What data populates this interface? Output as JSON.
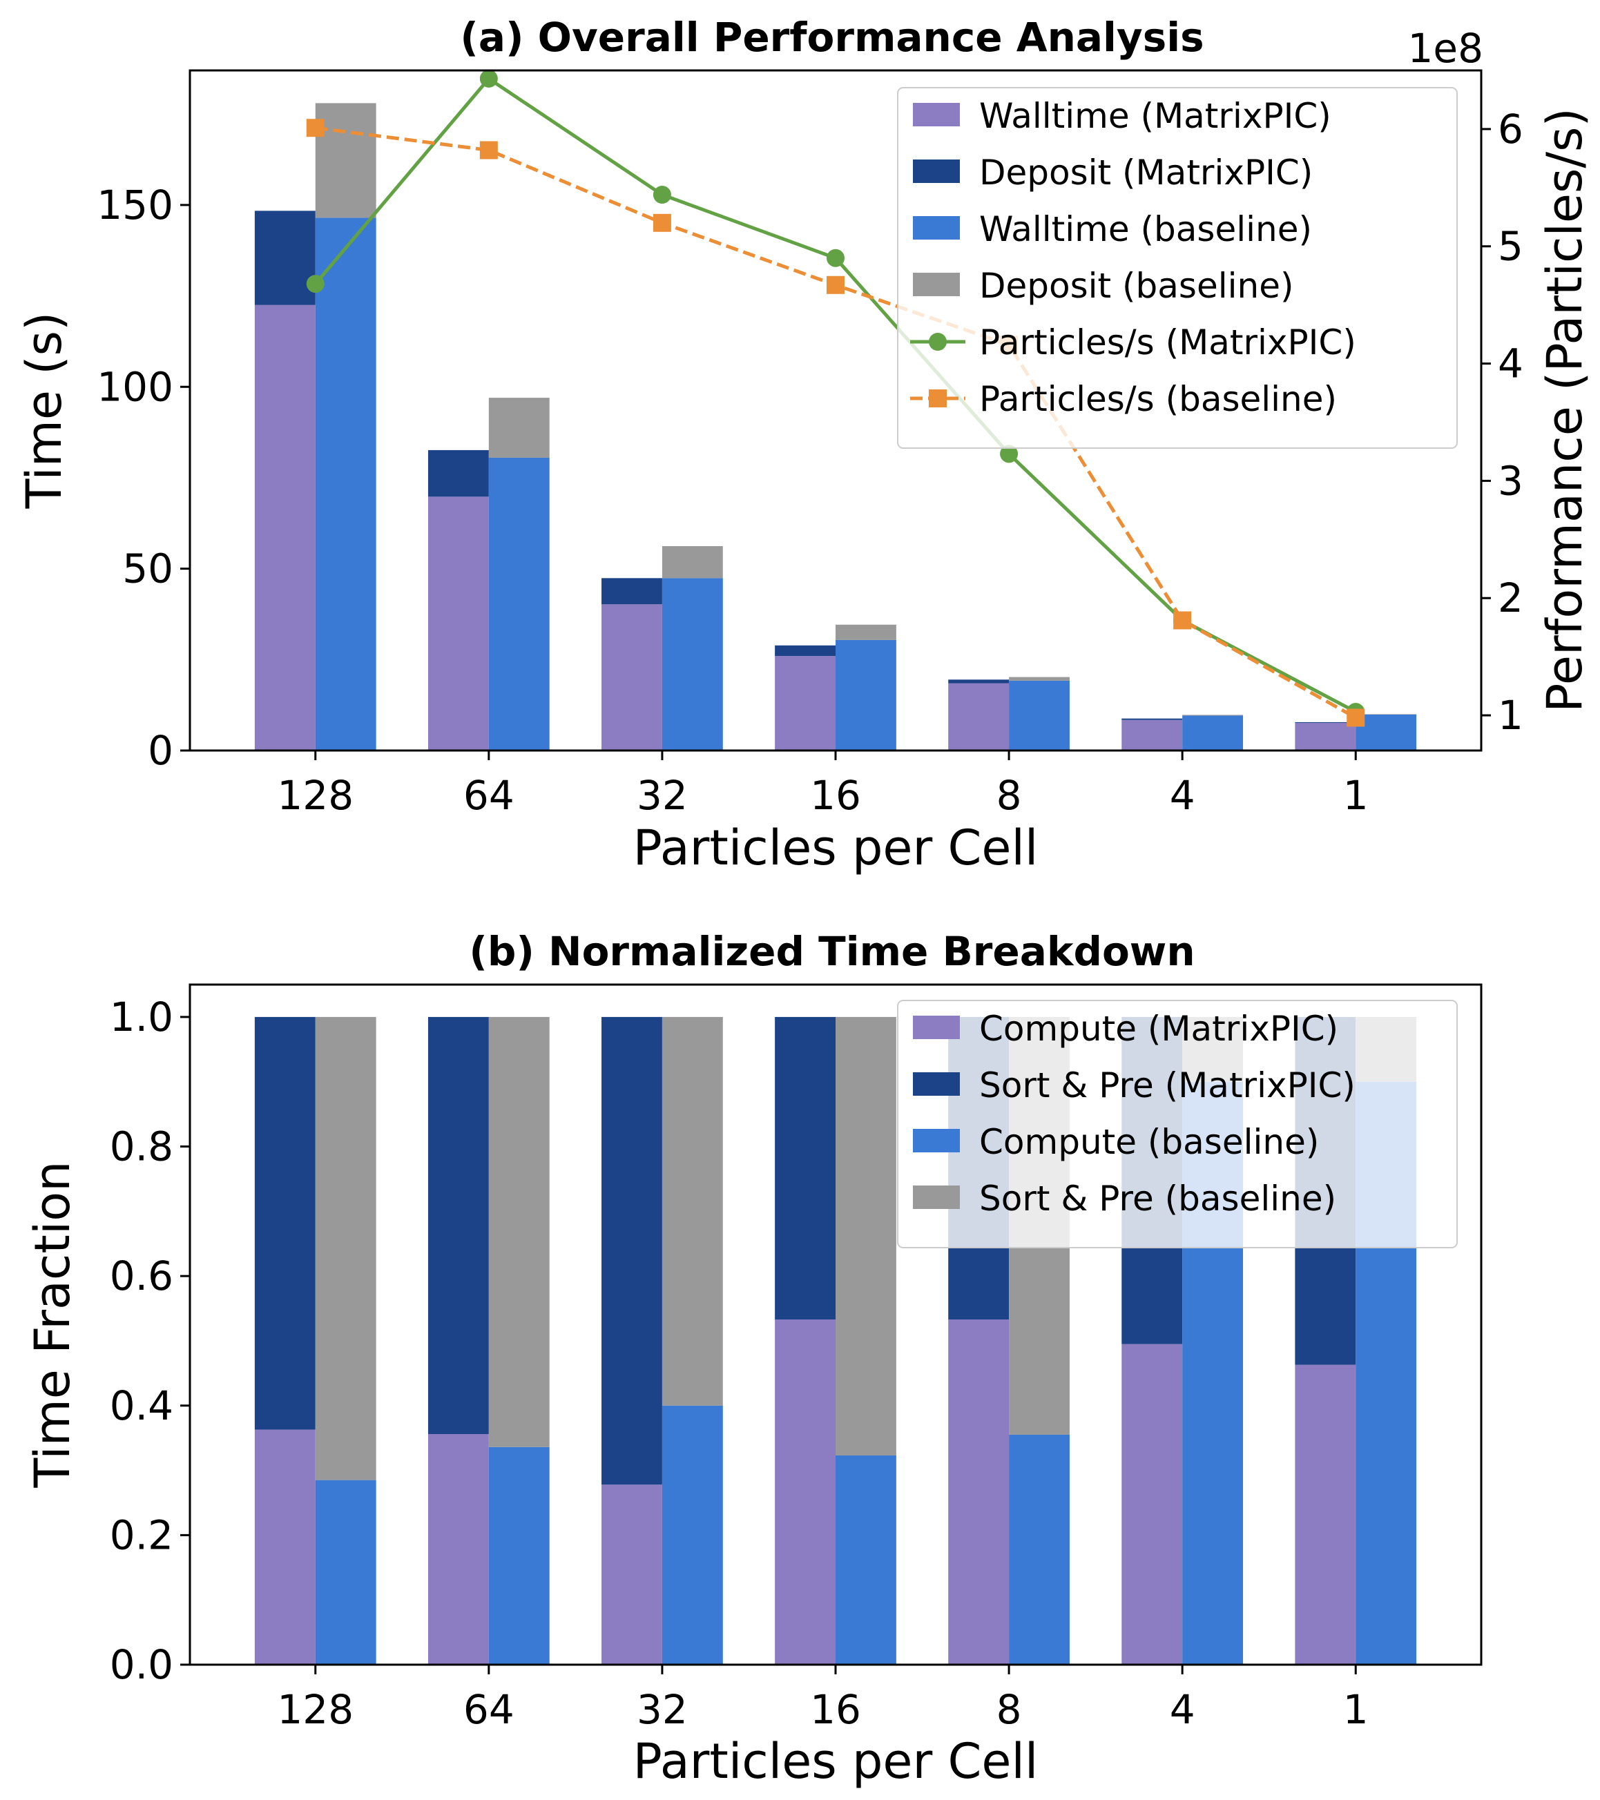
{
  "chart_data": [
    {
      "type": "bar",
      "title": "(a) Overall Performance Analysis",
      "xlabel": "Particles per Cell",
      "ylabel": "Time (s)",
      "y2label": "Performance (Particles/s)",
      "y2_offset_text": "1e8",
      "categories": [
        "128",
        "64",
        "32",
        "16",
        "8",
        "4",
        "1"
      ],
      "ylim": [
        0,
        187
      ],
      "yticks": [
        0,
        50,
        100,
        150
      ],
      "y2lim": [
        0.7,
        6.5
      ],
      "y2ticks": [
        1,
        2,
        3,
        4,
        5,
        6
      ],
      "bar_series": [
        {
          "name": "Walltime (MatrixPIC)",
          "group": "MatrixPIC",
          "color": "#8c7dc2",
          "values": [
            122.5,
            69.8,
            40.2,
            26.0,
            18.5,
            8.4,
            7.6
          ]
        },
        {
          "name": "Deposit (MatrixPIC)",
          "group": "MatrixPIC",
          "color": "#1c4388",
          "values": [
            25.9,
            12.8,
            7.2,
            2.9,
            1.0,
            0.4,
            0.2
          ]
        },
        {
          "name": "Walltime (baseline)",
          "group": "baseline",
          "color": "#3a7ad5",
          "values": [
            146.5,
            80.5,
            47.4,
            30.4,
            19.2,
            9.6,
            9.9
          ]
        },
        {
          "name": "Deposit (baseline)",
          "group": "baseline",
          "color": "#999999",
          "values": [
            31.5,
            16.5,
            8.8,
            4.2,
            1.0,
            0.2,
            0.1
          ]
        }
      ],
      "line_series": [
        {
          "name": "Particles/s (MatrixPIC)",
          "color": "#62a244",
          "marker": "circle",
          "dashed": false,
          "values": [
            4.68,
            6.43,
            5.44,
            4.9,
            3.23,
            1.81,
            1.03
          ]
        },
        {
          "name": "Particles/s (baseline)",
          "color": "#ec8e36",
          "marker": "square",
          "dashed": true,
          "values": [
            6.01,
            5.82,
            5.2,
            4.67,
            4.16,
            1.81,
            0.98
          ]
        }
      ],
      "legend_position": "upper right"
    },
    {
      "type": "bar",
      "title": "(b) Normalized Time Breakdown",
      "xlabel": "Particles per Cell",
      "ylabel": "Time Fraction",
      "categories": [
        "128",
        "64",
        "32",
        "16",
        "8",
        "4",
        "1"
      ],
      "ylim": [
        0,
        1.05
      ],
      "yticks": [
        0.0,
        0.2,
        0.4,
        0.6,
        0.8,
        1.0
      ],
      "ytick_labels": [
        "0.0",
        "0.2",
        "0.4",
        "0.6",
        "0.8",
        "1.0"
      ],
      "bar_series": [
        {
          "name": "Compute (MatrixPIC)",
          "group": "MatrixPIC",
          "color": "#8c7dc2",
          "values": [
            0.363,
            0.356,
            0.278,
            0.533,
            0.533,
            0.495,
            0.463
          ]
        },
        {
          "name": "Sort & Pre (MatrixPIC)",
          "group": "MatrixPIC",
          "color": "#1c4388",
          "values": [
            0.637,
            0.644,
            0.722,
            0.467,
            0.467,
            0.505,
            0.537
          ]
        },
        {
          "name": "Compute (baseline)",
          "group": "baseline",
          "color": "#3a7ad5",
          "values": [
            0.285,
            0.336,
            0.4,
            0.323,
            0.355,
            0.9,
            0.9
          ]
        },
        {
          "name": "Sort & Pre (baseline)",
          "group": "baseline",
          "color": "#999999",
          "values": [
            0.715,
            0.664,
            0.6,
            0.677,
            0.645,
            0.1,
            0.1
          ]
        }
      ],
      "legend_position": "upper right"
    }
  ]
}
